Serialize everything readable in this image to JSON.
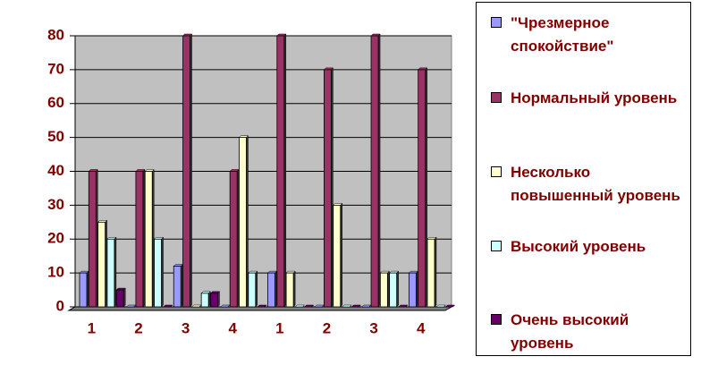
{
  "chart_data": {
    "type": "bar",
    "categories": [
      "1",
      "2",
      "3",
      "4",
      "1",
      "2",
      "3",
      "4"
    ],
    "series": [
      {
        "name": "\"Чрезмерное спокойствие\"",
        "color": "#9999ff",
        "values": [
          10,
          0,
          12,
          0,
          10,
          0,
          0,
          10
        ]
      },
      {
        "name": "Нормальный уровень",
        "color": "#993366",
        "values": [
          40,
          40,
          80,
          40,
          80,
          70,
          80,
          70
        ]
      },
      {
        "name": "Несколько повышенный уровень",
        "color": "#ffffcc",
        "values": [
          25,
          40,
          0,
          50,
          10,
          30,
          10,
          20
        ]
      },
      {
        "name": "Высокий уровень",
        "color": "#ccffff",
        "values": [
          20,
          20,
          4,
          10,
          0,
          0,
          10,
          0
        ]
      },
      {
        "name": "Очень высокий уровень",
        "color": "#660066",
        "values": [
          5,
          0,
          4,
          0,
          0,
          0,
          0,
          0
        ]
      }
    ],
    "ylim": [
      0,
      80
    ],
    "yticks": [
      0,
      10,
      20,
      30,
      40,
      50,
      60,
      70,
      80
    ],
    "grid": true,
    "legend": "right"
  }
}
